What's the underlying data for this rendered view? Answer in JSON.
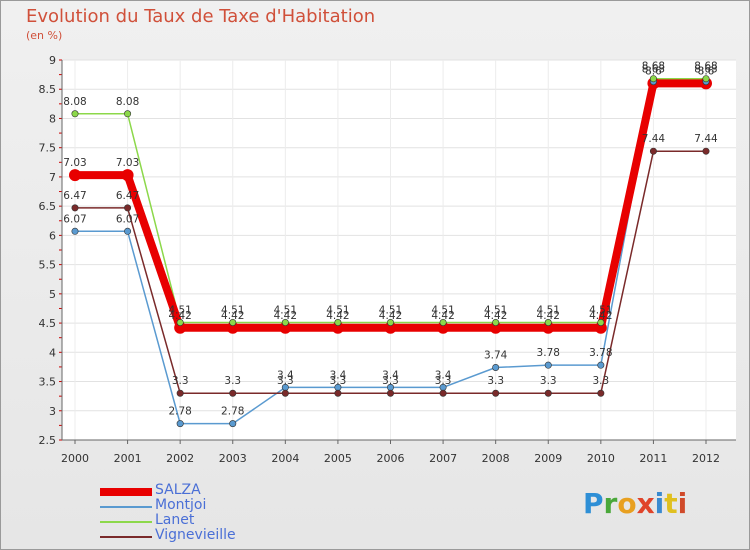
{
  "title": "Evolution du Taux de Taxe d'Habitation",
  "subtitle": "(en %)",
  "logo": {
    "text": "Proxiti",
    "letters": [
      "P",
      "r",
      "o",
      "x",
      "i",
      "t",
      "i"
    ],
    "colors": [
      "#2e8fd6",
      "#4aa83a",
      "#e8a020",
      "#e0442a",
      "#3a8ad0",
      "#e0c020",
      "#d04a2a"
    ]
  },
  "chart_data": {
    "type": "line",
    "title": "Evolution du Taux de Taxe d'Habitation",
    "ylabel": "(en %)",
    "xlabel": "",
    "x": [
      "2000",
      "2001",
      "2002",
      "2003",
      "2004",
      "2005",
      "2006",
      "2007",
      "2008",
      "2009",
      "2010",
      "2011",
      "2012"
    ],
    "ylim": [
      2.5,
      9
    ],
    "yticks": [
      "2.5",
      "3",
      "3.5",
      "4",
      "4.5",
      "5",
      "5.5",
      "6",
      "6.5",
      "7",
      "7.5",
      "8",
      "8.5",
      "9"
    ],
    "grid": true,
    "series": [
      {
        "name": "SALZA",
        "color": "#e80000",
        "width": 8,
        "values": [
          7.03,
          7.03,
          4.42,
          4.42,
          4.42,
          4.42,
          4.42,
          4.42,
          4.42,
          4.42,
          4.42,
          8.6,
          8.6
        ],
        "labels": [
          "7.03",
          "7.03",
          "4.42",
          "4.42",
          "4.42",
          "4.42",
          "4.42",
          "4.42",
          "4.42",
          "4.42",
          "4.42",
          "8.6",
          "8.6"
        ]
      },
      {
        "name": "Montjoi",
        "color": "#5a9ad0",
        "width": 1.5,
        "values": [
          6.07,
          6.07,
          2.78,
          2.78,
          3.4,
          3.4,
          3.4,
          3.4,
          3.74,
          3.78,
          3.78,
          8.63,
          8.63
        ],
        "labels": [
          "6.07",
          "6.07",
          "2.78",
          "2.78",
          "3.4",
          "3.4",
          "3.4",
          "3.4",
          "3.74",
          "3.78",
          "3.78",
          "8.63",
          "8.63"
        ]
      },
      {
        "name": "Lanet",
        "color": "#8cd84a",
        "width": 1.5,
        "values": [
          8.08,
          8.08,
          4.51,
          4.51,
          4.51,
          4.51,
          4.51,
          4.51,
          4.51,
          4.51,
          4.51,
          8.68,
          8.68
        ],
        "labels": [
          "8.08",
          "8.08",
          "4.51",
          "4.51",
          "4.51",
          "4.51",
          "4.51",
          "4.51",
          "4.51",
          "4.51",
          "4.51",
          "8.68",
          "8.68"
        ]
      },
      {
        "name": "Vignevieille",
        "color": "#7a2a2a",
        "width": 1.5,
        "values": [
          6.47,
          6.47,
          3.3,
          3.3,
          3.3,
          3.3,
          3.3,
          3.3,
          3.3,
          3.3,
          3.3,
          7.44,
          7.44
        ],
        "labels": [
          "6.47",
          "6.47",
          "3.3",
          "3.3",
          "3.3",
          "3.3",
          "3.3",
          "3.3",
          "3.3",
          "3.3",
          "3.3",
          "7.44",
          "7.44"
        ]
      }
    ],
    "legend": {
      "position": "bottom-left",
      "items": [
        "SALZA",
        "Montjoi",
        "Lanet",
        "Vignevieille"
      ]
    }
  }
}
